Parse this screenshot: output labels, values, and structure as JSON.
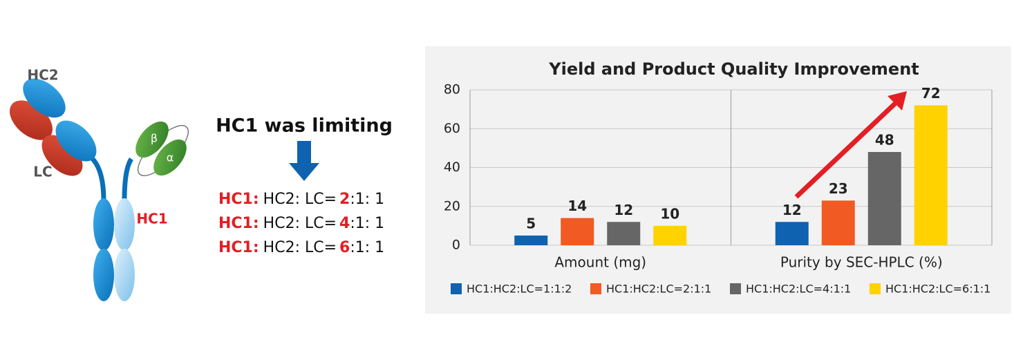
{
  "diagram": {
    "labels": {
      "hc2": "HC2",
      "lc": "LC",
      "beta": "β",
      "alpha": "α",
      "hc1": "HC1"
    },
    "heading": "HC1 was limiting",
    "ratios": [
      {
        "prefix": "HC1:",
        "middle": "HC2: LC=",
        "number": 2,
        "suffix": ":1: 1"
      },
      {
        "prefix": "HC1:",
        "middle": "HC2: LC=",
        "number": 4,
        "suffix": ":1: 1"
      },
      {
        "prefix": "HC1:",
        "middle": "HC2: LC=",
        "number": 6,
        "suffix": ":1: 1"
      }
    ]
  },
  "chart_data": {
    "type": "bar",
    "title": "Yield and Product Quality Improvement",
    "categories": [
      "Amount (mg)",
      "Purity by SEC-HPLC (%)"
    ],
    "series": [
      {
        "name": "HC1:HC2:LC=1:1:2",
        "color": "#0f62b0",
        "values": [
          5,
          12
        ]
      },
      {
        "name": "HC1:HC2:LC=2:1:1",
        "color": "#f15a22",
        "values": [
          14,
          23
        ]
      },
      {
        "name": "HC1:HC2:LC=4:1:1",
        "color": "#666666",
        "values": [
          12,
          48
        ]
      },
      {
        "name": "HC1:HC2:LC=6:1:1",
        "color": "#ffd200",
        "values": [
          10,
          72
        ]
      }
    ],
    "ylim": [
      0,
      80
    ],
    "yticks": [
      0,
      20,
      40,
      60,
      80
    ],
    "grid": true
  }
}
